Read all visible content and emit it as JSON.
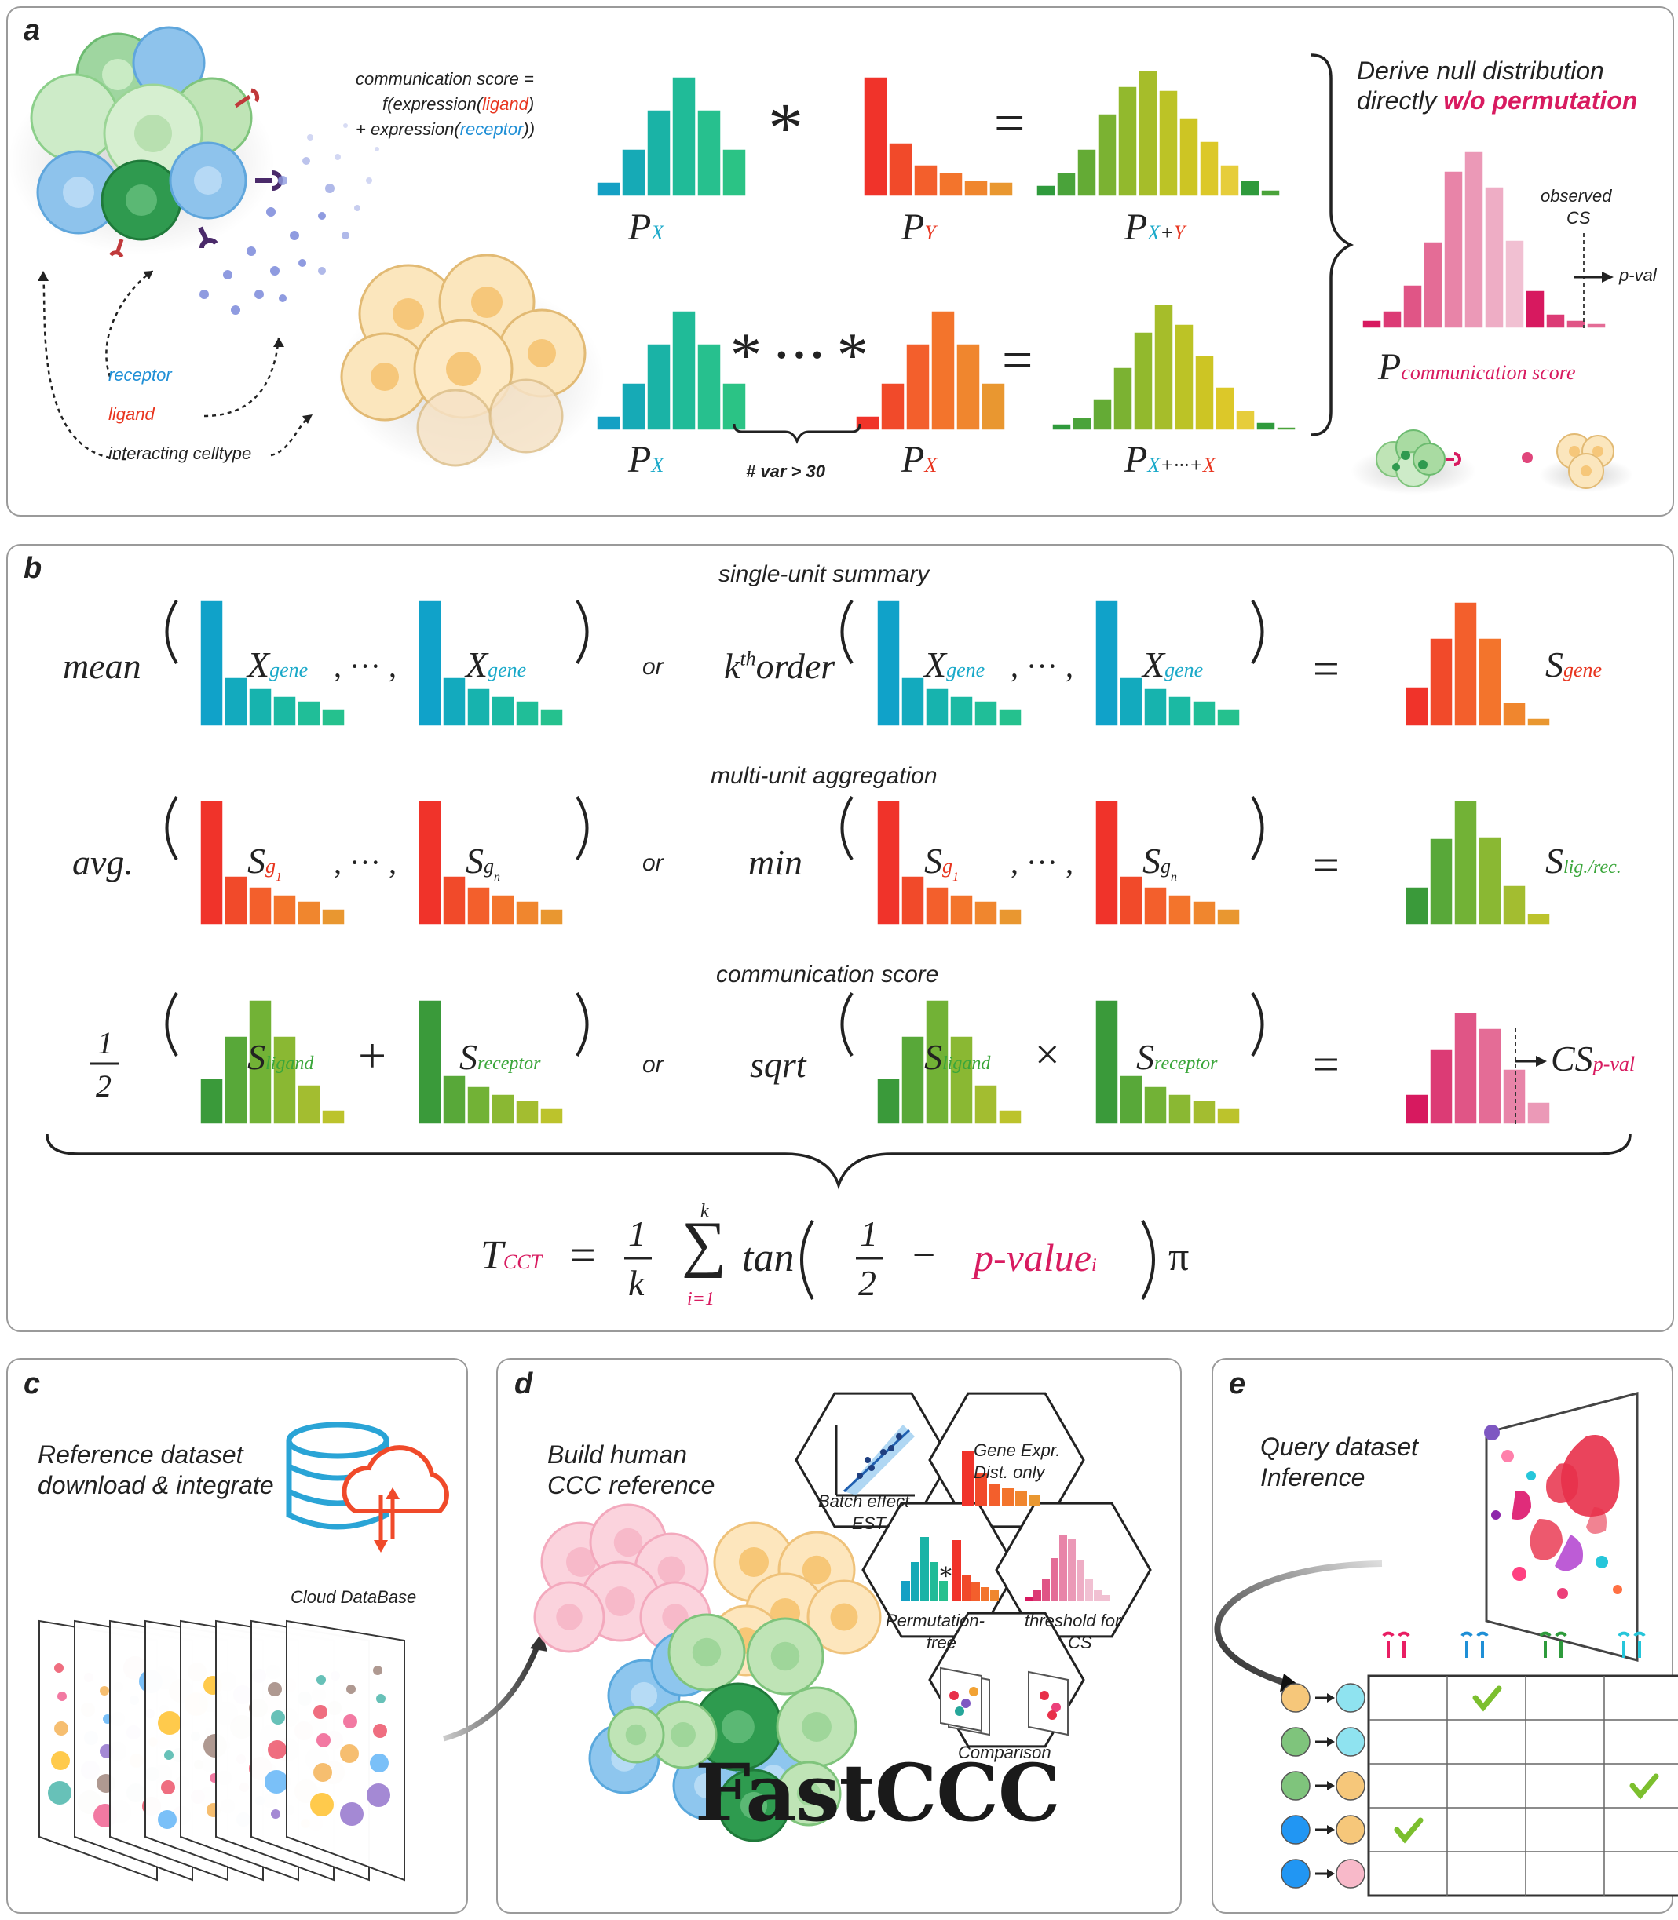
{
  "panel_a": {
    "label": "a",
    "comm_score_line1": "communication score =",
    "comm_score_line2_pre": "f(expression(",
    "comm_score_ligand": "ligand",
    "comm_score_line2_post": ")",
    "comm_score_line3_pre": "+ expression(",
    "comm_score_receptor": "receptor",
    "comm_score_line3_post": "))",
    "receptor": "receptor",
    "ligand": "ligand",
    "interacting": "interacting celltype",
    "px_P": "P",
    "px_sub": "X",
    "py_sub": "Y",
    "pxy_sub_x": "X",
    "pxy_sub_plus": "+",
    "pxy_sub_y": "Y",
    "pxx_sub_x1": "X",
    "pxx_sub_mid": "+···+",
    "pxx_sub_x2": "X",
    "conv": "*",
    "conv_dots": "* ··· *",
    "equals": "=",
    "var_note": "# var > 30",
    "derive_line1": "Derive null distribution",
    "derive_line2_pre": "directly ",
    "derive_line2_em": "w/o permutation",
    "observed": "observed",
    "cs": "CS",
    "pval": "p-val",
    "pcs_sub": "communication score"
  },
  "panel_b": {
    "label": "b",
    "single_unit": "single-unit summary",
    "multi_unit": "multi-unit aggregation",
    "comm_score": "communication score",
    "mean": "mean",
    "kth_k": "k",
    "kth_th": "th",
    "kth_order": "order",
    "avg": "avg.",
    "min": "min",
    "sqrt": "sqrt",
    "or": "or",
    "ellipsis": ", ··· ,",
    "X": "X",
    "gene": "gene",
    "S": "S",
    "g1": "g",
    "g1_sub": "1",
    "gn": "g",
    "gn_sub": "n",
    "lig_rec": "lig./rec.",
    "ligand": "ligand",
    "receptor": "receptor",
    "half_num": "1",
    "half_den": "2",
    "plus": "+",
    "times": "×",
    "CS": "CS",
    "p_val": "p-val",
    "equals": "=",
    "formula_T": "T",
    "formula_CCT": "CCT",
    "formula_eq": "=",
    "formula_1": "1",
    "formula_k": "k",
    "formula_sum_top": "k",
    "formula_sum": "∑",
    "formula_sum_bot": "i=1",
    "formula_tan": "tan",
    "formula_minus": "−",
    "formula_pvalue": "p-value",
    "formula_i": "i",
    "formula_pi": "π"
  },
  "panel_c": {
    "label": "c",
    "line1": "Reference dataset",
    "line2": "download & integrate",
    "cloud": "Cloud DataBase"
  },
  "panel_d": {
    "label": "d",
    "line1": "Build human",
    "line2": "CCC reference",
    "hex_batch_1": "Batch effect",
    "hex_batch_2": "EST",
    "hex_gene_1": "Gene Expr.",
    "hex_gene_2": "Dist. only",
    "hex_perm_1": "Permutation-",
    "hex_perm_2": "free",
    "hex_thr_1": "threshold for",
    "hex_thr_2": "CS",
    "hex_comp": "Comparison",
    "brand": "FastCCC"
  },
  "panel_e": {
    "label": "e",
    "line1": "Query dataset",
    "line2": "Inference"
  },
  "colors": {
    "teal": "#1aa9a6",
    "red": "#f04a2a",
    "green": "#3a9a3a",
    "pink": "#d93d78",
    "blue_text": "#1f8fd6",
    "red_text": "#e8351f",
    "pink_text": "#d81b60",
    "green_text": "#3aa63a"
  }
}
